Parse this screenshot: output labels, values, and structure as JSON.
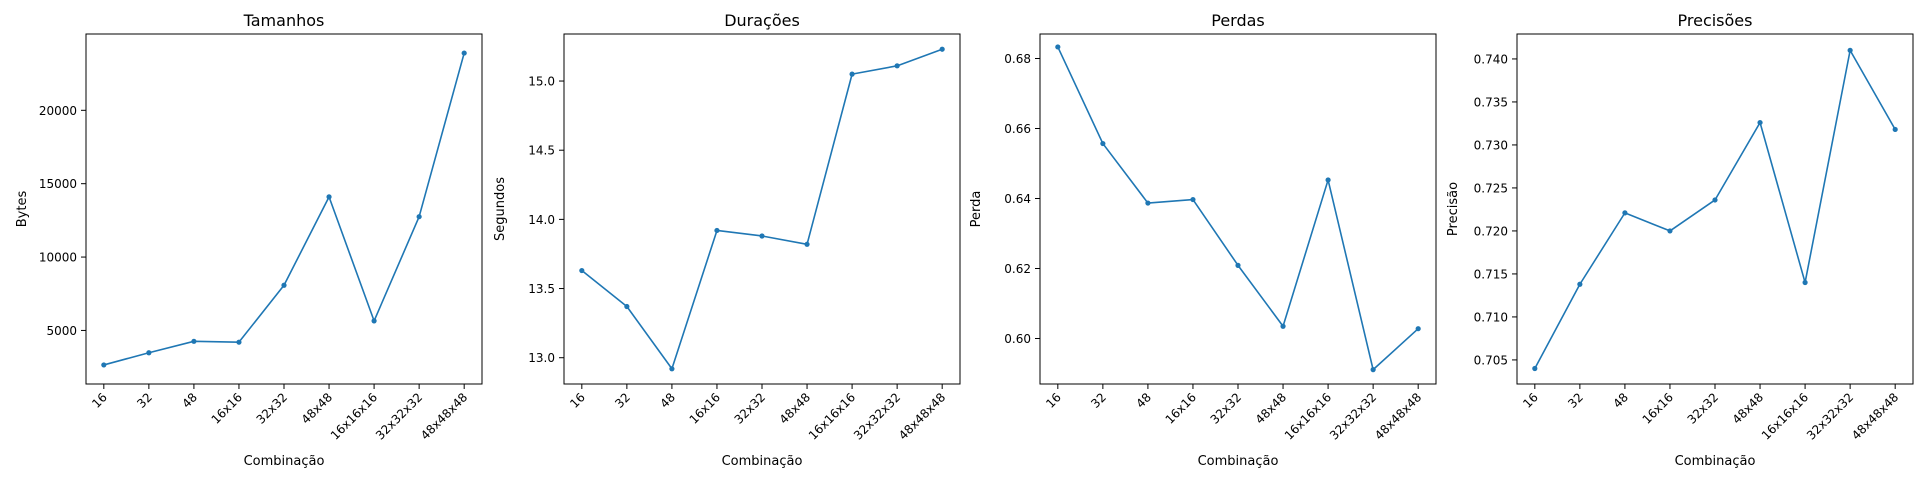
{
  "chart_data": [
    {
      "type": "line",
      "title": "Tamanhos",
      "xlabel": "Combinação",
      "ylabel": "Bytes",
      "categories": [
        "16",
        "32",
        "48",
        "16x16",
        "32x32",
        "48x48",
        "16x16x16",
        "32x32x32",
        "48x48x48"
      ],
      "values": [
        2650,
        3480,
        4260,
        4200,
        8080,
        14100,
        5650,
        12750,
        23900
      ],
      "ylim": [
        1350,
        25200
      ],
      "yticks": [
        5000,
        10000,
        15000,
        20000
      ],
      "grid": false,
      "color": "#1f77b4"
    },
    {
      "type": "line",
      "title": "Durações",
      "xlabel": "Combinação",
      "ylabel": "Segundos",
      "categories": [
        "16",
        "32",
        "48",
        "16x16",
        "32x32",
        "48x48",
        "16x16x16",
        "32x32x32",
        "48x48x48"
      ],
      "values": [
        13.63,
        13.37,
        12.92,
        13.92,
        13.88,
        13.82,
        15.05,
        15.11,
        15.23
      ],
      "ylim": [
        12.81,
        15.34
      ],
      "yticks": [
        13.0,
        13.5,
        14.0,
        14.5,
        15.0
      ],
      "grid": false,
      "color": "#1f77b4"
    },
    {
      "type": "line",
      "title": "Perdas",
      "xlabel": "Combinação",
      "ylabel": "Perda",
      "categories": [
        "16",
        "32",
        "48",
        "16x16",
        "32x32",
        "48x48",
        "16x16x16",
        "32x32x32",
        "48x48x48"
      ],
      "values": [
        0.6833,
        0.6557,
        0.6387,
        0.6397,
        0.6209,
        0.6035,
        0.6453,
        0.5911,
        0.6028
      ],
      "ylim": [
        0.587,
        0.687
      ],
      "yticks": [
        0.6,
        0.62,
        0.64,
        0.66,
        0.68
      ],
      "grid": false,
      "color": "#1f77b4"
    },
    {
      "type": "line",
      "title": "Precisões",
      "xlabel": "Combinação",
      "ylabel": "Precisão",
      "categories": [
        "16",
        "32",
        "48",
        "16x16",
        "32x32",
        "48x48",
        "16x16x16",
        "32x32x32",
        "48x48x48"
      ],
      "values": [
        0.704,
        0.7138,
        0.7221,
        0.72,
        0.7236,
        0.7326,
        0.714,
        0.741,
        0.7318
      ],
      "ylim": [
        0.7022,
        0.7429
      ],
      "yticks": [
        0.705,
        0.71,
        0.715,
        0.72,
        0.725,
        0.73,
        0.735,
        0.74
      ],
      "grid": false,
      "color": "#1f77b4"
    }
  ]
}
